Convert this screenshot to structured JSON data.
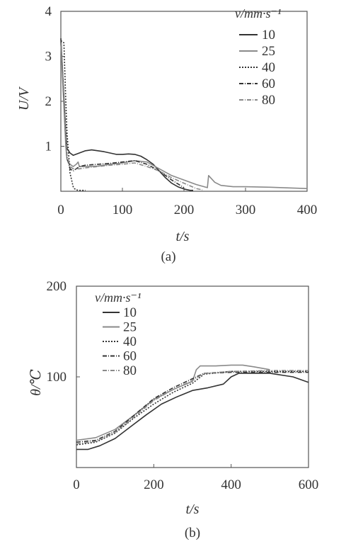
{
  "chart_data": [
    {
      "type": "line",
      "panel_label": "(a)",
      "xlabel": "t/s",
      "ylabel": "U/V",
      "xlim": [
        0,
        400
      ],
      "ylim": [
        0,
        4
      ],
      "x_ticks": [
        "0",
        "100",
        "200",
        "300",
        "400"
      ],
      "y_ticks": [
        "1",
        "2",
        "3",
        "4"
      ],
      "grid": false,
      "legend": {
        "title": "v/mm·s⁻¹",
        "position": "top-right"
      },
      "series": [
        {
          "name": "10",
          "color": "#333333",
          "dash": "",
          "x": [
            0,
            8,
            10,
            15,
            20,
            30,
            40,
            50,
            60,
            70,
            80,
            90,
            100,
            110,
            120,
            130,
            140,
            150,
            160,
            170,
            180,
            190,
            200,
            210,
            215
          ],
          "y": [
            3.4,
            1.3,
            0.95,
            0.85,
            0.8,
            0.85,
            0.9,
            0.92,
            0.9,
            0.88,
            0.85,
            0.82,
            0.82,
            0.83,
            0.82,
            0.78,
            0.7,
            0.6,
            0.45,
            0.3,
            0.18,
            0.1,
            0.05,
            0.02,
            0.02
          ]
        },
        {
          "name": "25",
          "color": "#8a8a8a",
          "dash": "",
          "x": [
            0,
            8,
            10,
            15,
            20,
            25,
            28,
            30,
            40,
            60,
            80,
            100,
            120,
            140,
            160,
            180,
            200,
            220,
            238,
            240,
            242,
            250,
            260,
            280,
            300,
            340,
            380,
            400
          ],
          "y": [
            3.3,
            1.0,
            0.7,
            0.6,
            0.55,
            0.6,
            0.65,
            0.55,
            0.55,
            0.56,
            0.6,
            0.63,
            0.68,
            0.65,
            0.5,
            0.35,
            0.25,
            0.15,
            0.08,
            0.35,
            0.32,
            0.2,
            0.13,
            0.1,
            0.1,
            0.09,
            0.07,
            0.06
          ]
        },
        {
          "name": "40",
          "color": "#333333",
          "dash": "2,2",
          "x": [
            0,
            5,
            8,
            10,
            15,
            20,
            22,
            25,
            30,
            40
          ],
          "y": [
            3.35,
            3.3,
            2.0,
            1.3,
            0.4,
            0.1,
            0.06,
            0.03,
            0.02,
            0.02
          ]
        },
        {
          "name": "60",
          "color": "#333333",
          "dash": "6,2,1,2",
          "x": [
            0,
            10,
            15,
            20,
            30,
            40,
            60,
            80,
            100,
            120,
            140,
            160,
            180,
            200
          ],
          "y": [
            3.3,
            0.75,
            0.5,
            0.45,
            0.55,
            0.58,
            0.6,
            0.62,
            0.65,
            0.68,
            0.6,
            0.45,
            0.25,
            0.08
          ]
        },
        {
          "name": "80",
          "color": "#8a8a8a",
          "dash": "6,2,1,2",
          "x": [
            0,
            10,
            15,
            20,
            30,
            40,
            60,
            80,
            100,
            120,
            140,
            160,
            180,
            200,
            220,
            230
          ],
          "y": [
            3.3,
            0.8,
            0.55,
            0.5,
            0.5,
            0.52,
            0.55,
            0.58,
            0.6,
            0.63,
            0.55,
            0.45,
            0.3,
            0.18,
            0.06,
            0.03
          ]
        }
      ]
    },
    {
      "type": "line",
      "panel_label": "(b)",
      "xlabel": "t/s",
      "ylabel": "θ/℃",
      "xlim": [
        0,
        600
      ],
      "ylim": [
        0,
        200
      ],
      "x_ticks": [
        "0",
        "200",
        "400",
        "600"
      ],
      "y_ticks": [
        "100",
        "200"
      ],
      "grid": false,
      "legend": {
        "title": "v/mm·s⁻¹",
        "position": "top-left"
      },
      "series": [
        {
          "name": "10",
          "color": "#333333",
          "dash": "",
          "x": [
            0,
            30,
            60,
            100,
            140,
            180,
            220,
            260,
            300,
            340,
            380,
            400,
            420,
            460,
            500,
            560,
            600
          ],
          "y": [
            20,
            20,
            24,
            32,
            45,
            58,
            70,
            78,
            85,
            88,
            92,
            100,
            104,
            104,
            104,
            100,
            94
          ]
        },
        {
          "name": "25",
          "color": "#8a8a8a",
          "dash": "",
          "x": [
            0,
            50,
            100,
            150,
            200,
            250,
            300,
            310,
            320,
            360,
            400,
            430,
            460,
            500
          ],
          "y": [
            30,
            33,
            42,
            58,
            75,
            86,
            95,
            108,
            112,
            112,
            113,
            113,
            111,
            108
          ]
        },
        {
          "name": "40",
          "color": "#333333",
          "dash": "2,2",
          "x": [
            0,
            50,
            100,
            150,
            200,
            250,
            300,
            330,
            400,
            500,
            600
          ],
          "y": [
            25,
            28,
            38,
            55,
            70,
            83,
            93,
            103,
            106,
            106,
            106
          ]
        },
        {
          "name": "60",
          "color": "#333333",
          "dash": "6,2,1,2",
          "x": [
            0,
            50,
            100,
            150,
            200,
            250,
            300,
            330,
            400,
            500,
            600
          ],
          "y": [
            28,
            30,
            40,
            58,
            76,
            88,
            98,
            104,
            105,
            105,
            105
          ]
        },
        {
          "name": "80",
          "color": "#8a8a8a",
          "dash": "6,2,1,2",
          "x": [
            0,
            50,
            100,
            150,
            200,
            250,
            300,
            330,
            400,
            500,
            600
          ],
          "y": [
            26,
            29,
            39,
            56,
            74,
            86,
            96,
            104,
            106,
            107,
            107
          ]
        }
      ]
    }
  ]
}
